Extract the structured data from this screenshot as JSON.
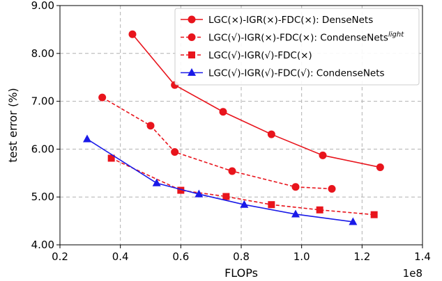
{
  "chart_data": {
    "type": "line",
    "xlabel": "FLOPs",
    "ylabel": "test error (%)",
    "x_exponent_label": "1e8",
    "xlim": [
      0.2,
      1.4
    ],
    "ylim": [
      4.0,
      9.0
    ],
    "xticks": [
      0.2,
      0.4,
      0.6,
      0.8,
      1.0,
      1.2,
      1.4
    ],
    "xtick_labels": [
      "0.2",
      "0.4",
      "0.6",
      "0.8",
      "1.0",
      "1.2",
      "1.4"
    ],
    "yticks": [
      4.0,
      5.0,
      6.0,
      7.0,
      8.0,
      9.0
    ],
    "ytick_labels": [
      "4.00",
      "5.00",
      "6.00",
      "7.00",
      "8.00",
      "9.00"
    ],
    "grid": true,
    "legend_position": "top-right",
    "series": [
      {
        "name": "LGC(×)-IGR(×)-FDC(×): DenseNets",
        "name_superscript": "",
        "color": "#e8141c",
        "line_style": "solid",
        "marker": "circle",
        "x": [
          0.44,
          0.58,
          0.74,
          0.9,
          1.07,
          1.26
        ],
        "y": [
          8.4,
          7.34,
          6.78,
          6.31,
          5.87,
          5.62
        ]
      },
      {
        "name": "LGC(√)-IGR(×)-FDC(×): CondenseNets",
        "name_superscript": "light",
        "color": "#e8141c",
        "line_style": "dashed",
        "marker": "circle",
        "x": [
          0.34,
          0.5,
          0.58,
          0.77,
          0.98,
          1.1
        ],
        "y": [
          7.08,
          6.49,
          5.94,
          5.54,
          5.21,
          5.17
        ]
      },
      {
        "name": "LGC(√)-IGR(√)-FDC(×)",
        "name_superscript": "",
        "color": "#e8141c",
        "line_style": "dashed",
        "marker": "square",
        "x": [
          0.37,
          0.6,
          0.75,
          0.9,
          1.06,
          1.24
        ],
        "y": [
          5.81,
          5.14,
          5.01,
          4.84,
          4.73,
          4.63
        ]
      },
      {
        "name": "LGC(√)-IGR(√)-FDC(√): CondenseNets",
        "name_superscript": "",
        "color": "#1a1ae8",
        "line_style": "solid",
        "marker": "triangle",
        "x": [
          0.29,
          0.52,
          0.66,
          0.81,
          0.98,
          1.17
        ],
        "y": [
          6.21,
          5.29,
          5.06,
          4.84,
          4.64,
          4.48
        ]
      }
    ]
  }
}
